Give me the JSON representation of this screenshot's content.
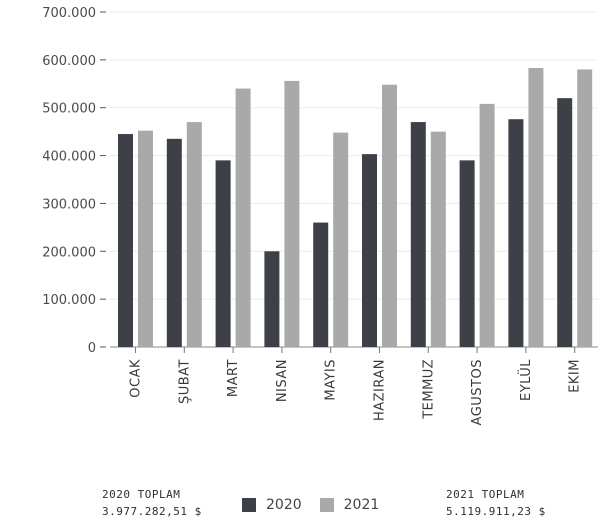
{
  "chart_data": {
    "type": "bar",
    "categories": [
      "OCAK",
      "ŞUBAT",
      "MART",
      "NISAN",
      "MAYIS",
      "HAZIRAN",
      "TEMMUZ",
      "AGUSTOS",
      "EYLÜL",
      "EKIM"
    ],
    "series": [
      {
        "name": "2020",
        "values": [
          445000,
          435000,
          390000,
          200000,
          260000,
          403000,
          470000,
          390000,
          476000,
          520000
        ]
      },
      {
        "name": "2021",
        "values": [
          452000,
          470000,
          540000,
          556000,
          448000,
          548000,
          450000,
          508000,
          583000,
          580000
        ]
      }
    ],
    "ylim": [
      0,
      700000
    ],
    "yticks": [
      "0",
      "100.000",
      "200.000",
      "300.000",
      "400.000",
      "500.000",
      "600.000",
      "700.000"
    ],
    "grid": true,
    "legend": "bottom",
    "colors": {
      "2020": "#3d4147",
      "2021": "#a9a9a9"
    }
  },
  "totals": {
    "y2020": {
      "label": "2020 TOPLAM",
      "value": "3.977.282,51 $"
    },
    "y2021": {
      "label": "2021 TOPLAM",
      "value": "5.119.911,23 $"
    }
  }
}
